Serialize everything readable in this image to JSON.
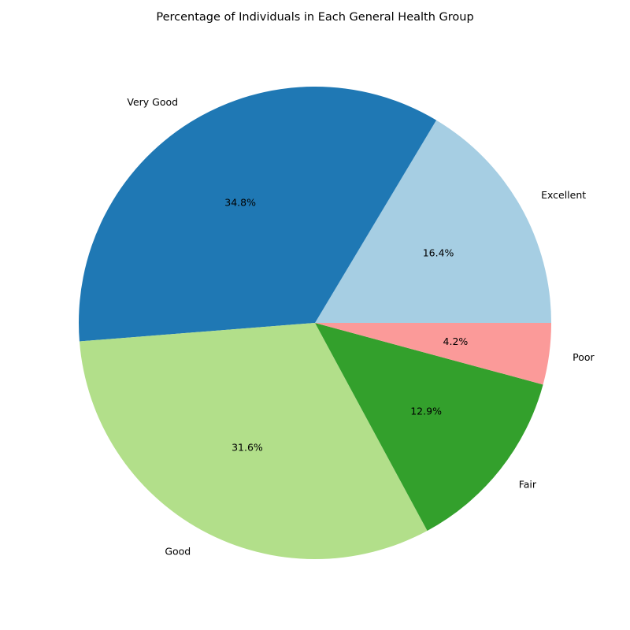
{
  "chart_data": {
    "type": "pie",
    "title": "Percentage of Individuals in Each General Health Group",
    "categories": [
      "Excellent",
      "Very Good",
      "Good",
      "Fair",
      "Poor"
    ],
    "values": [
      16.4,
      34.8,
      31.6,
      12.9,
      4.2
    ],
    "percent_labels": [
      "16.4%",
      "34.8%",
      "31.6%",
      "12.9%",
      "4.2%"
    ],
    "colors": [
      "#a6cee3",
      "#1f78b4",
      "#b2df8a",
      "#33a02c",
      "#fb9a99"
    ],
    "start_angle_deg": 0,
    "direction": "counterclockwise",
    "legend": "none"
  }
}
